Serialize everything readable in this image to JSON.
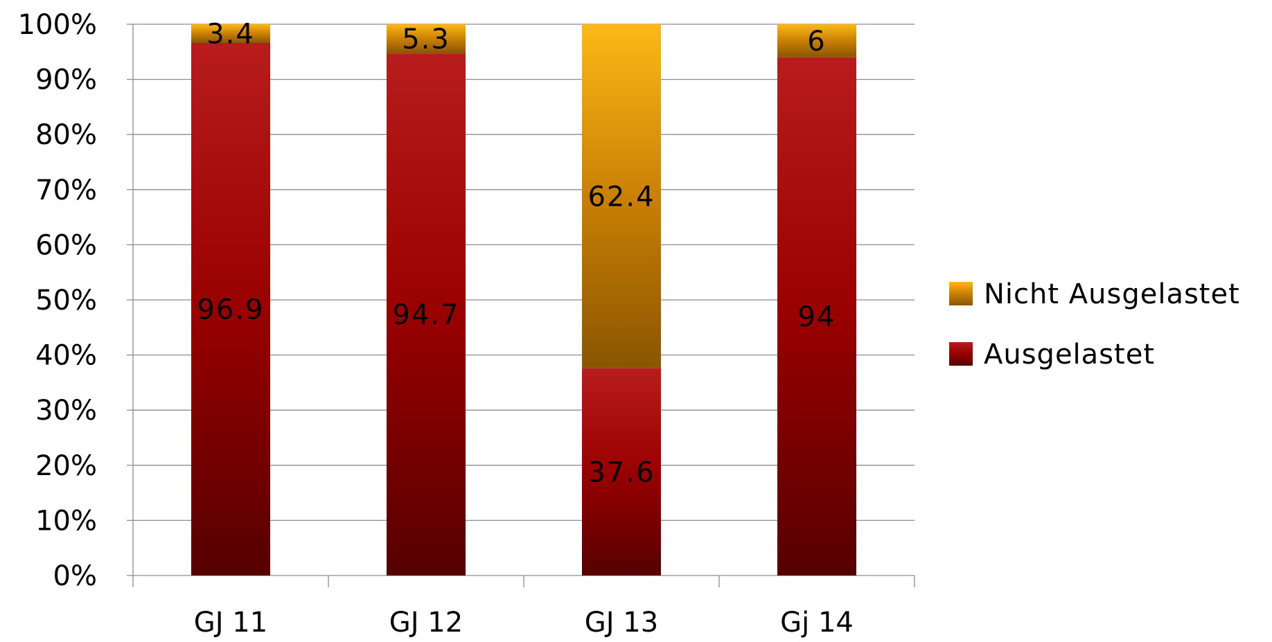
{
  "chart_data": {
    "type": "bar",
    "stacked": true,
    "percent_stacked": true,
    "categories": [
      "GJ 11",
      "GJ 12",
      "GJ 13",
      "Gj 14"
    ],
    "series": [
      {
        "name": "Ausgelastet",
        "values": [
          96.9,
          94.7,
          37.6,
          94
        ],
        "labels": [
          "96.9",
          "94.7",
          "37.6",
          "94"
        ],
        "color": "#9b0000"
      },
      {
        "name": "Nicht Ausgelastet",
        "values": [
          3.4,
          5.3,
          62.4,
          6
        ],
        "labels": [
          "3.4",
          "5.3",
          "62.4",
          "6"
        ],
        "color": "#f5a800"
      }
    ],
    "y_ticks": [
      "0%",
      "10%",
      "20%",
      "30%",
      "40%",
      "50%",
      "60%",
      "70%",
      "80%",
      "90%",
      "100%"
    ],
    "ylim": [
      0,
      100
    ],
    "grid": true,
    "legend_position": "right",
    "title": "",
    "xlabel": "",
    "ylabel": ""
  }
}
